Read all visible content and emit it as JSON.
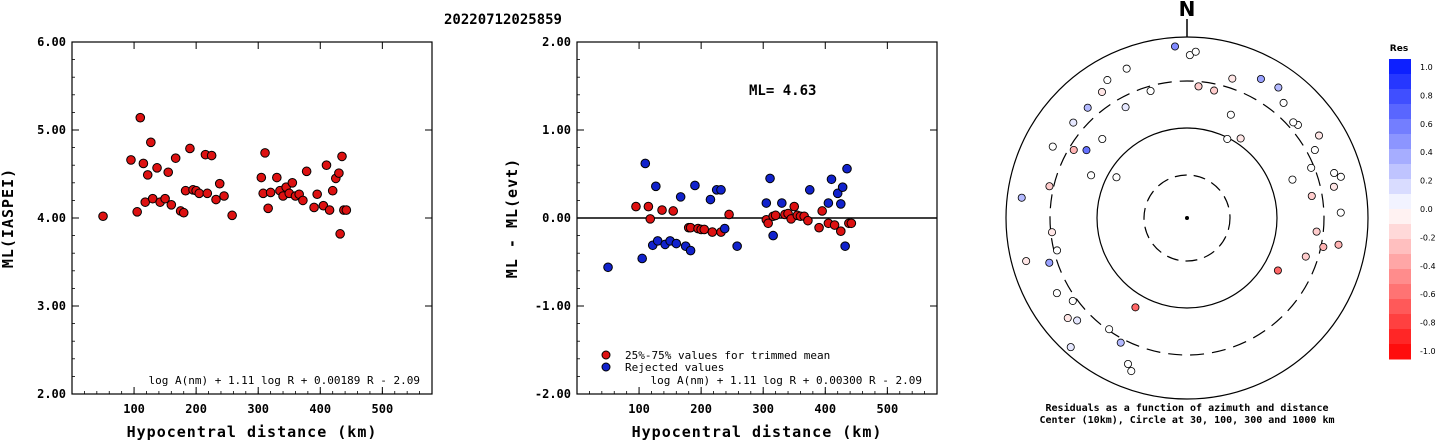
{
  "title": "20220712025859",
  "chart_data": [
    {
      "type": "scatter",
      "xlabel": "Hypocentral distance (km)",
      "ylabel": "ML(IASPEI)",
      "xlim": [
        0,
        580
      ],
      "ylim": [
        2.0,
        6.0
      ],
      "xticks": [
        "100",
        "200",
        "300",
        "400",
        "500"
      ],
      "yticks": [
        "2.00",
        "3.00",
        "4.00",
        "5.00",
        "6.00"
      ],
      "formula": "log A(nm) + 1.11 log R + 0.00189 R - 2.09",
      "points": [
        [
          50,
          4.02
        ],
        [
          95,
          4.66
        ],
        [
          105,
          4.07
        ],
        [
          110,
          5.14
        ],
        [
          115,
          4.62
        ],
        [
          118,
          4.18
        ],
        [
          122,
          4.49
        ],
        [
          127,
          4.86
        ],
        [
          130,
          4.22
        ],
        [
          137,
          4.57
        ],
        [
          142,
          4.18
        ],
        [
          150,
          4.22
        ],
        [
          155,
          4.52
        ],
        [
          160,
          4.15
        ],
        [
          167,
          4.68
        ],
        [
          175,
          4.08
        ],
        [
          180,
          4.06
        ],
        [
          183,
          4.31
        ],
        [
          190,
          4.79
        ],
        [
          195,
          4.32
        ],
        [
          200,
          4.31
        ],
        [
          205,
          4.28
        ],
        [
          215,
          4.72
        ],
        [
          218,
          4.28
        ],
        [
          225,
          4.71
        ],
        [
          232,
          4.21
        ],
        [
          238,
          4.39
        ],
        [
          245,
          4.25
        ],
        [
          258,
          4.03
        ],
        [
          305,
          4.46
        ],
        [
          308,
          4.28
        ],
        [
          311,
          4.74
        ],
        [
          316,
          4.11
        ],
        [
          320,
          4.29
        ],
        [
          330,
          4.46
        ],
        [
          335,
          4.31
        ],
        [
          340,
          4.25
        ],
        [
          345,
          4.35
        ],
        [
          350,
          4.28
        ],
        [
          355,
          4.4
        ],
        [
          360,
          4.25
        ],
        [
          366,
          4.27
        ],
        [
          372,
          4.2
        ],
        [
          378,
          4.53
        ],
        [
          390,
          4.12
        ],
        [
          395,
          4.27
        ],
        [
          405,
          4.14
        ],
        [
          410,
          4.6
        ],
        [
          415,
          4.09
        ],
        [
          420,
          4.31
        ],
        [
          425,
          4.45
        ],
        [
          430,
          4.51
        ],
        [
          432,
          3.82
        ],
        [
          435,
          4.7
        ],
        [
          438,
          4.09
        ],
        [
          442,
          4.09
        ]
      ]
    },
    {
      "type": "scatter",
      "xlabel": "Hypocentral distance (km)",
      "ylabel": "ML - ML(evt)",
      "xlim": [
        0,
        580
      ],
      "ylim": [
        -2.0,
        2.0
      ],
      "xticks": [
        "100",
        "200",
        "300",
        "400",
        "500"
      ],
      "yticks": [
        "-2.00",
        "-1.00",
        "0.00",
        "1.00",
        "2.00"
      ],
      "annotation": "ML= 4.63",
      "formula": "log A(nm) + 1.11 log R + 0.00300 R - 2.09",
      "legend": [
        {
          "label": "25%-75% values for trimmed mean",
          "color": "#dd1111"
        },
        {
          "label": "Rejected values",
          "color": "#1122cc"
        }
      ],
      "series": [
        {
          "name": "25%-75% values for trimmed mean",
          "color": "#dd1111",
          "points": [
            [
              95,
              0.13
            ],
            [
              115,
              0.13
            ],
            [
              118,
              -0.01
            ],
            [
              137,
              0.09
            ],
            [
              155,
              0.08
            ],
            [
              180,
              -0.11
            ],
            [
              183,
              -0.11
            ],
            [
              195,
              -0.12
            ],
            [
              200,
              -0.13
            ],
            [
              205,
              -0.13
            ],
            [
              218,
              -0.16
            ],
            [
              232,
              -0.16
            ],
            [
              245,
              0.04
            ],
            [
              305,
              -0.02
            ],
            [
              308,
              -0.06
            ],
            [
              316,
              0.02
            ],
            [
              320,
              0.03
            ],
            [
              335,
              0.04
            ],
            [
              340,
              0.05
            ],
            [
              345,
              -0.01
            ],
            [
              350,
              0.13
            ],
            [
              355,
              0.03
            ],
            [
              360,
              0.02
            ],
            [
              366,
              0.02
            ],
            [
              372,
              -0.03
            ],
            [
              390,
              -0.11
            ],
            [
              395,
              0.08
            ],
            [
              405,
              -0.06
            ],
            [
              415,
              -0.08
            ],
            [
              425,
              -0.15
            ],
            [
              438,
              -0.06
            ],
            [
              442,
              -0.06
            ]
          ]
        },
        {
          "name": "Rejected values",
          "color": "#1122cc",
          "points": [
            [
              50,
              -0.56
            ],
            [
              105,
              -0.46
            ],
            [
              110,
              0.62
            ],
            [
              122,
              -0.31
            ],
            [
              127,
              0.36
            ],
            [
              130,
              -0.26
            ],
            [
              142,
              -0.3
            ],
            [
              150,
              -0.26
            ],
            [
              160,
              -0.29
            ],
            [
              167,
              0.24
            ],
            [
              175,
              -0.32
            ],
            [
              183,
              -0.37
            ],
            [
              190,
              0.37
            ],
            [
              215,
              0.21
            ],
            [
              225,
              0.32
            ],
            [
              232,
              0.32
            ],
            [
              238,
              -0.12
            ],
            [
              258,
              -0.32
            ],
            [
              305,
              0.17
            ],
            [
              311,
              0.45
            ],
            [
              316,
              -0.2
            ],
            [
              330,
              0.17
            ],
            [
              375,
              0.32
            ],
            [
              405,
              0.17
            ],
            [
              410,
              0.44
            ],
            [
              420,
              0.28
            ],
            [
              425,
              0.16
            ],
            [
              428,
              0.35
            ],
            [
              432,
              -0.32
            ],
            [
              435,
              0.56
            ]
          ]
        }
      ]
    },
    {
      "type": "scatter",
      "subtype": "polar",
      "north_label": "N",
      "caption_line1": "Residuals as a function of azimuth and distance",
      "caption_line2": "Center (10km), Circle at 30, 100, 300 and 1000 km",
      "colorbar_title": "Res",
      "colorbar_ticks": [
        "1.0",
        "0.8",
        "0.6",
        "0.4",
        "0.2",
        "0.0",
        "-0.2",
        "-0.4",
        "-0.6",
        "-0.8",
        "-1.0"
      ],
      "points_azimuth_radius_residual": [
        [
          -22,
          0.89,
          0.0
        ],
        [
          -16,
          0.73,
          0.0
        ],
        [
          -34,
          0.84,
          -0.1
        ],
        [
          -42,
          0.82,
          0.3
        ],
        [
          -47,
          0.64,
          0.0
        ],
        [
          -50,
          0.82,
          0.1
        ],
        [
          -59,
          0.73,
          -0.3
        ],
        [
          -62,
          0.84,
          0.0
        ],
        [
          -77,
          0.78,
          -0.2
        ],
        [
          -83,
          0.92,
          0.3
        ],
        [
          -96,
          0.75,
          -0.1
        ],
        [
          -104,
          0.74,
          0.0
        ],
        [
          -105,
          0.92,
          -0.1
        ],
        [
          -108,
          0.8,
          0.4
        ],
        [
          -120,
          0.83,
          0.0
        ],
        [
          -126,
          0.78,
          0.0
        ],
        [
          -130,
          0.86,
          -0.1
        ],
        [
          -138,
          0.96,
          0.1
        ],
        [
          -133,
          0.83,
          0.1
        ],
        [
          -145,
          0.75,
          0.0
        ],
        [
          -152,
          0.78,
          0.3
        ],
        [
          -150,
          0.57,
          -0.6
        ],
        [
          -158,
          0.87,
          0.0
        ],
        [
          -160,
          0.9,
          0.0
        ],
        [
          -29,
          0.7,
          0.1
        ],
        [
          -4,
          0.95,
          0.5
        ],
        [
          1,
          0.9,
          0.0
        ],
        [
          3,
          0.92,
          0.0
        ],
        [
          12,
          0.72,
          -0.2
        ],
        [
          5,
          0.73,
          -0.2
        ],
        [
          18,
          0.81,
          -0.1
        ],
        [
          28,
          0.87,
          0.4
        ],
        [
          35,
          0.88,
          0.3
        ],
        [
          40,
          0.83,
          0.0
        ],
        [
          50,
          0.8,
          0.0
        ],
        [
          48,
          0.79,
          0.0
        ],
        [
          62,
          0.8,
          0.0
        ],
        [
          68,
          0.74,
          0.0
        ],
        [
          75,
          0.88,
          0.0
        ],
        [
          58,
          0.86,
          -0.1
        ],
        [
          78,
          0.83,
          -0.1
        ],
        [
          70,
          0.62,
          0.0
        ],
        [
          73,
          0.85,
          0.0
        ],
        [
          80,
          0.7,
          -0.2
        ],
        [
          88,
          0.85,
          0.0
        ],
        [
          100,
          0.85,
          -0.3
        ],
        [
          102,
          0.77,
          -0.3
        ],
        [
          108,
          0.69,
          -0.2
        ],
        [
          96,
          0.72,
          -0.2
        ],
        [
          120,
          0.58,
          -0.6
        ],
        [
          34,
          0.53,
          -0.1
        ],
        [
          27,
          0.49,
          0.0
        ],
        [
          23,
          0.62,
          0.0
        ],
        [
          -60,
          0.45,
          0.0
        ],
        [
          -56,
          0.67,
          0.6
        ],
        [
          -66,
          0.58,
          0.0
        ],
        [
          -30,
          0.88,
          0.0
        ]
      ]
    }
  ]
}
